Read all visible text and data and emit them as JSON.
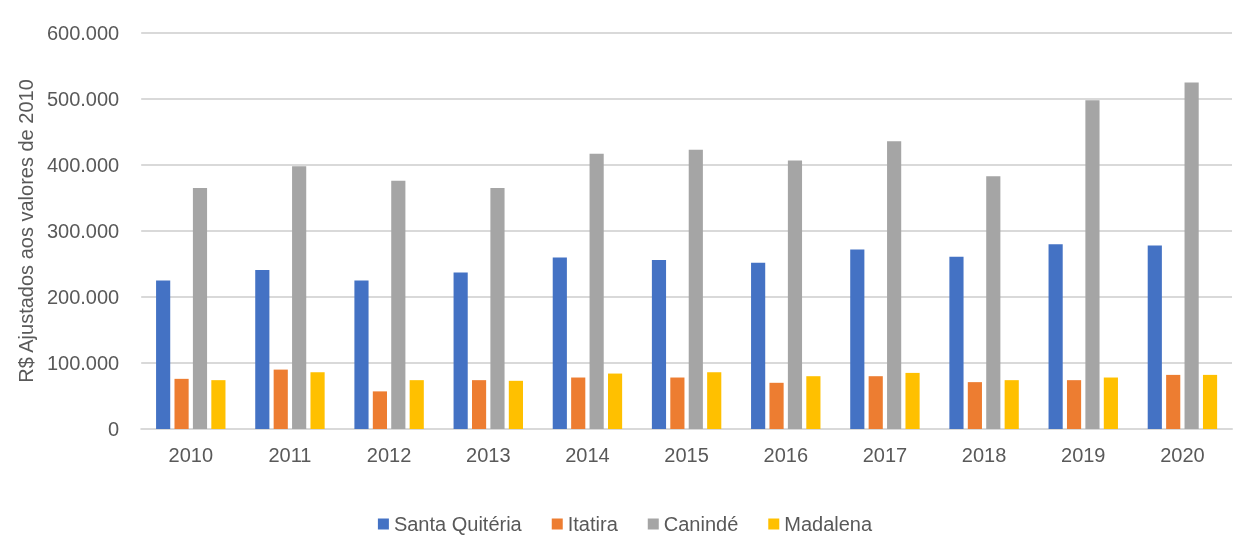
{
  "chart_data": {
    "type": "bar",
    "ylabel": "R$ Ajustados aos valores de 2010",
    "categories": [
      "2010",
      "2011",
      "2012",
      "2013",
      "2014",
      "2015",
      "2016",
      "2017",
      "2018",
      "2019",
      "2020"
    ],
    "series": [
      {
        "name": "Santa Quitéria",
        "color": "#4472c4",
        "values": [
          225000,
          241000,
          225000,
          237000,
          260000,
          256000,
          252000,
          272000,
          261000,
          280000,
          278000
        ]
      },
      {
        "name": "Itatira",
        "color": "#ed7d31",
        "values": [
          76000,
          90000,
          57000,
          74000,
          78000,
          78000,
          70000,
          80000,
          71000,
          74000,
          82000
        ]
      },
      {
        "name": "Canindé",
        "color": "#a5a5a5",
        "values": [
          365000,
          398000,
          376000,
          365000,
          417000,
          423000,
          407000,
          436000,
          383000,
          498000,
          525000
        ]
      },
      {
        "name": "Madalena",
        "color": "#ffc000",
        "values": [
          74000,
          86000,
          74000,
          73000,
          84000,
          86000,
          80000,
          85000,
          74000,
          78000,
          82000
        ]
      }
    ],
    "ylim": [
      0,
      600000
    ],
    "yticks": [
      {
        "value": 0,
        "label": "0"
      },
      {
        "value": 100000,
        "label": "100.000"
      },
      {
        "value": 200000,
        "label": "200.000"
      },
      {
        "value": 300000,
        "label": "300.000"
      },
      {
        "value": 400000,
        "label": "400.000"
      },
      {
        "value": 500000,
        "label": "500.000"
      },
      {
        "value": 600000,
        "label": "600.000"
      }
    ],
    "grid": "y",
    "legend": "bottom"
  }
}
